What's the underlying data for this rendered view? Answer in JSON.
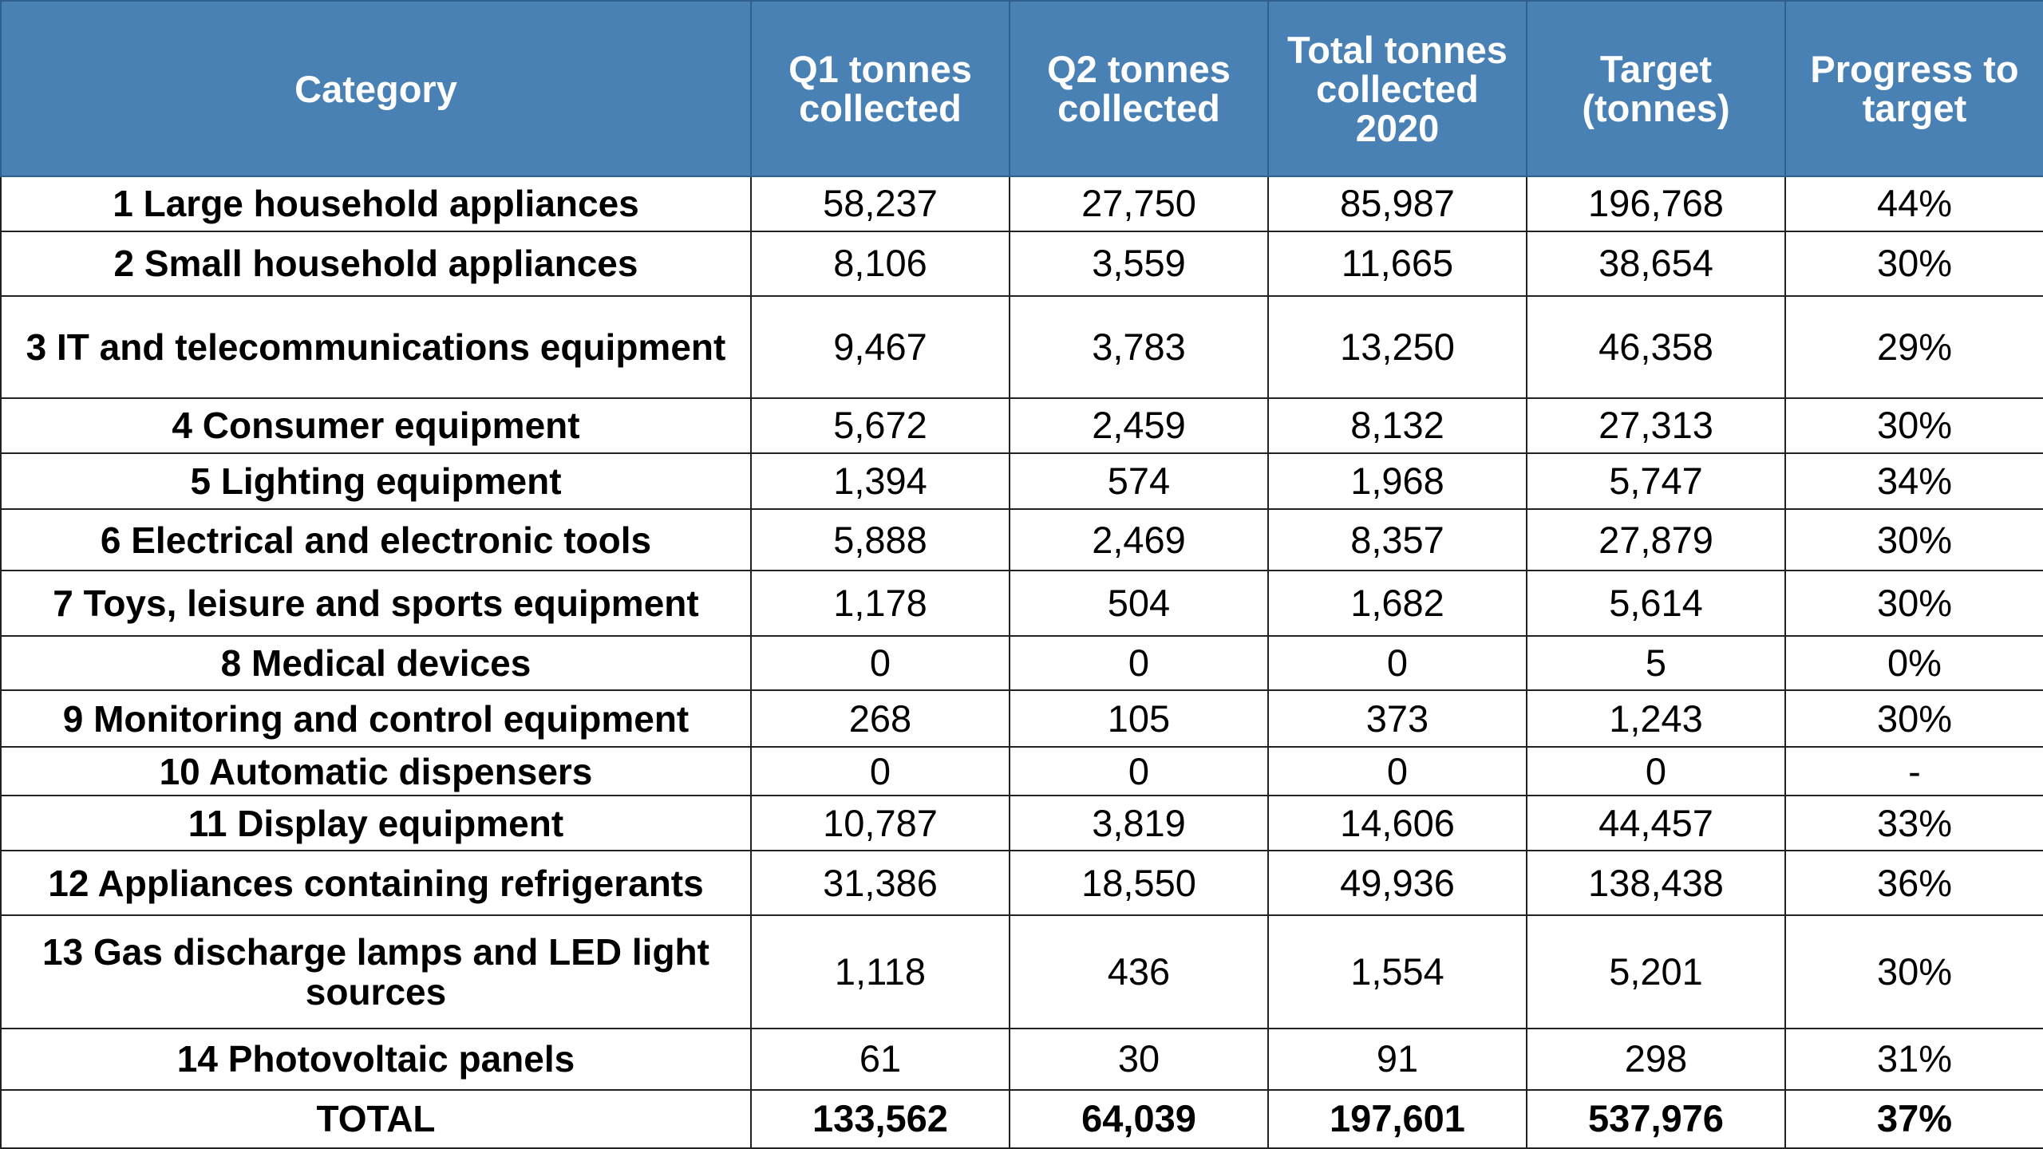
{
  "chart_data": {
    "type": "table",
    "columns": [
      "Category",
      "Q1 tonnes collected",
      "Q2 tonnes collected",
      "Total tonnes collected 2020",
      "Target (tonnes)",
      "Progress to target"
    ],
    "rows": [
      [
        "1 Large household appliances",
        "58,237",
        "27,750",
        "85,987",
        "196,768",
        "44%"
      ],
      [
        "2 Small household appliances",
        "8,106",
        "3,559",
        "11,665",
        "38,654",
        "30%"
      ],
      [
        "3 IT and telecommunications equipment",
        "9,467",
        "3,783",
        "13,250",
        "46,358",
        "29%"
      ],
      [
        "4 Consumer equipment",
        "5,672",
        "2,459",
        "8,132",
        "27,313",
        "30%"
      ],
      [
        "5 Lighting equipment",
        "1,394",
        "574",
        "1,968",
        "5,747",
        "34%"
      ],
      [
        "6 Electrical and electronic tools",
        "5,888",
        "2,469",
        "8,357",
        "27,879",
        "30%"
      ],
      [
        "7 Toys, leisure and sports equipment",
        "1,178",
        "504",
        "1,682",
        "5,614",
        "30%"
      ],
      [
        "8 Medical devices",
        "0",
        "0",
        "0",
        "5",
        "0%"
      ],
      [
        "9 Monitoring and control equipment",
        "268",
        "105",
        "373",
        "1,243",
        "30%"
      ],
      [
        "10 Automatic dispensers",
        "0",
        "0",
        "0",
        "0",
        "-"
      ],
      [
        "11 Display equipment",
        "10,787",
        "3,819",
        "14,606",
        "44,457",
        "33%"
      ],
      [
        "12 Appliances containing refrigerants",
        "31,386",
        "18,550",
        "49,936",
        "138,438",
        "36%"
      ],
      [
        "13 Gas discharge lamps and LED light sources",
        "1,118",
        "436",
        "1,554",
        "5,201",
        "30%"
      ],
      [
        "14 Photovoltaic panels",
        "61",
        "30",
        "91",
        "298",
        "31%"
      ],
      [
        "TOTAL",
        "133,562",
        "64,039",
        "197,601",
        "537,976",
        "37%"
      ]
    ],
    "colors": {
      "header_background": "#4a81b5",
      "header_text": "#ffffff",
      "body_text": "#000000"
    }
  }
}
